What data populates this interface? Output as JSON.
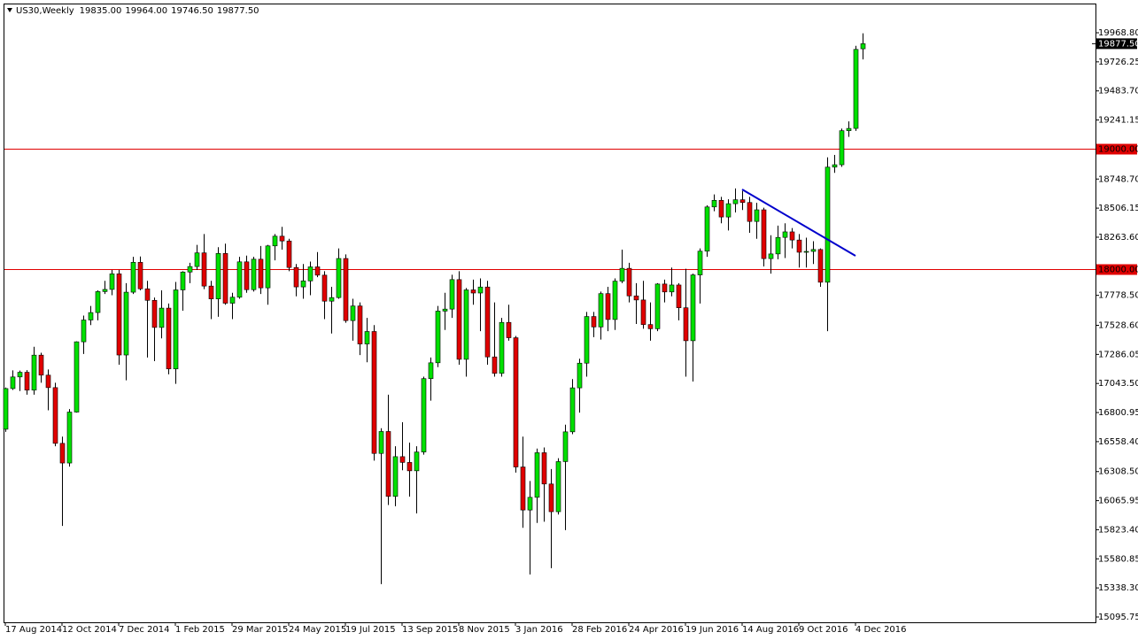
{
  "chart_data": {
    "type": "candlestick",
    "title": "US30,Weekly",
    "last_bar_labels": [
      "19835.00",
      "19964.00",
      "19746.50",
      "19877.50"
    ],
    "categories": [
      "17 Aug 2014",
      null,
      null,
      null,
      null,
      null,
      null,
      null,
      "12 Oct 2014",
      null,
      null,
      null,
      null,
      null,
      null,
      null,
      "7 Dec 2014",
      null,
      null,
      null,
      null,
      null,
      null,
      null,
      "1 Feb 2015",
      null,
      null,
      null,
      null,
      null,
      null,
      null,
      "29 Mar 2015",
      null,
      null,
      null,
      null,
      null,
      null,
      null,
      "24 May 2015",
      null,
      null,
      null,
      null,
      null,
      null,
      null,
      "19 Jul 2015",
      null,
      null,
      null,
      null,
      null,
      null,
      null,
      "13 Sep 2015",
      null,
      null,
      null,
      null,
      null,
      null,
      null,
      "8 Nov 2015",
      null,
      null,
      null,
      null,
      null,
      null,
      null,
      "3 Jan 2016",
      null,
      null,
      null,
      null,
      null,
      null,
      null,
      "28 Feb 2016",
      null,
      null,
      null,
      null,
      null,
      null,
      null,
      "24 Apr 2016",
      null,
      null,
      null,
      null,
      null,
      null,
      null,
      "19 Jun 2016",
      null,
      null,
      null,
      null,
      null,
      null,
      null,
      "14 Aug 2016",
      null,
      null,
      null,
      null,
      null,
      null,
      null,
      "9 Oct 2016",
      null,
      null,
      null,
      null,
      null,
      null,
      null,
      "4 Dec 2016",
      null
    ],
    "open": [
      16662,
      17001,
      17098,
      17137,
      16988,
      17280,
      17113,
      17009,
      16544,
      16380,
      16805,
      17391,
      17573,
      17635,
      17810,
      17828,
      17958,
      17281,
      17805,
      18054,
      17833,
      17737,
      17511,
      17672,
      17165,
      17824,
      17973,
      18019,
      18133,
      17856,
      17749,
      18128,
      17713,
      17763,
      18058,
      17826,
      18080,
      17841,
      18191,
      18272,
      18232,
      18011,
      17849,
      17899,
      18016,
      17947,
      17730,
      17760,
      18086,
      17568,
      17690,
      17373,
      17477,
      16460,
      16643,
      16102,
      16433,
      16385,
      16315,
      16472,
      17084,
      17216,
      17647,
      17664,
      17910,
      17245,
      17824,
      17798,
      17848,
      17265,
      17128,
      17553,
      17425,
      16347,
      15988,
      16094,
      16466,
      16205,
      15974,
      16392,
      16640,
      17007,
      17213,
      17602,
      17515,
      17793,
      17577,
      17897,
      18004,
      17774,
      17740,
      17535,
      17500,
      17873,
      17807,
      17865,
      17675,
      17400,
      17949,
      18147,
      18516,
      18571,
      18432,
      18543,
      18576,
      18553,
      18395,
      18492,
      18085,
      18124,
      18262,
      18308,
      18240,
      18138,
      18145,
      18161,
      17888,
      18848,
      18868,
      19152,
      19171,
      19835
    ],
    "high": [
      17010,
      17153,
      17151,
      17155,
      17350,
      17300,
      17160,
      17050,
      16600,
      16830,
      17395,
      17610,
      17690,
      17820,
      17900,
      17990,
      17990,
      17880,
      18100,
      18103,
      17900,
      17760,
      17820,
      17710,
      17890,
      17980,
      18050,
      18200,
      18290,
      17900,
      18180,
      18210,
      17800,
      18100,
      18110,
      18100,
      18190,
      18200,
      18290,
      18350,
      18250,
      18040,
      18040,
      18060,
      18140,
      17980,
      17850,
      18170,
      18120,
      17750,
      17720,
      17590,
      17530,
      16670,
      16950,
      16520,
      16720,
      16550,
      16520,
      17100,
      17260,
      17690,
      17800,
      17950,
      17980,
      17840,
      17910,
      17920,
      17900,
      17720,
      17590,
      17700,
      17440,
      16600,
      16230,
      16500,
      16510,
      16330,
      16420,
      16700,
      17080,
      17250,
      17640,
      17640,
      17810,
      17850,
      17920,
      18160,
      18050,
      17880,
      17900,
      17720,
      17880,
      17910,
      18010,
      17880,
      18000,
      17960,
      18170,
      18530,
      18620,
      18600,
      18580,
      18670,
      18650,
      18600,
      18550,
      18510,
      18280,
      18360,
      18380,
      18340,
      18290,
      18260,
      18230,
      18170,
      18930,
      18950,
      19170,
      19230,
      19860,
      19964
    ],
    "low": [
      16640,
      16990,
      16980,
      16950,
      16950,
      17050,
      16820,
      16520,
      15855,
      16350,
      16800,
      17290,
      17530,
      17570,
      17790,
      17780,
      17200,
      17070,
      17790,
      17820,
      17260,
      17230,
      17420,
      17120,
      17040,
      17650,
      17880,
      17990,
      17830,
      17580,
      17600,
      17700,
      17580,
      17750,
      17800,
      17810,
      17790,
      17700,
      18070,
      18160,
      17980,
      17770,
      17750,
      17780,
      17930,
      17580,
      17460,
      17750,
      17550,
      17400,
      17280,
      17220,
      16400,
      15370,
      16030,
      16020,
      16320,
      16100,
      15960,
      16450,
      16900,
      17180,
      17490,
      17590,
      17200,
      17100,
      17700,
      17480,
      17200,
      17100,
      17100,
      17400,
      16300,
      15840,
      15450,
      15880,
      15890,
      15503,
      15950,
      15820,
      16620,
      16800,
      17100,
      17430,
      17410,
      17480,
      17490,
      17880,
      17720,
      17540,
      17500,
      17400,
      17480,
      17720,
      17770,
      17570,
      17100,
      17060,
      17710,
      18100,
      18480,
      18380,
      18320,
      18470,
      18490,
      18300,
      18250,
      18020,
      17960,
      18080,
      18090,
      18170,
      18010,
      18010,
      18040,
      17850,
      17480,
      18800,
      18850,
      19100,
      19150,
      19746.5
    ],
    "close": [
      17001,
      17098,
      17137,
      16988,
      17280,
      17113,
      17009,
      16544,
      16380,
      16805,
      17391,
      17573,
      17635,
      17810,
      17828,
      17958,
      17281,
      17805,
      18054,
      17833,
      17737,
      17511,
      17672,
      17165,
      17824,
      17973,
      18019,
      18133,
      17856,
      17749,
      18128,
      17713,
      17763,
      18058,
      17826,
      18080,
      17841,
      18191,
      18272,
      18232,
      18011,
      17849,
      17899,
      18016,
      17947,
      17730,
      17760,
      18086,
      17568,
      17690,
      17373,
      17477,
      16460,
      16643,
      16102,
      16433,
      16385,
      16315,
      16472,
      17084,
      17216,
      17647,
      17664,
      17910,
      17245,
      17824,
      17798,
      17848,
      17265,
      17128,
      17553,
      17425,
      16347,
      15988,
      16094,
      16466,
      16205,
      15974,
      16392,
      16640,
      17007,
      17213,
      17602,
      17515,
      17793,
      17577,
      17897,
      18004,
      17774,
      17740,
      17535,
      17500,
      17873,
      17807,
      17865,
      17675,
      17400,
      17949,
      18147,
      18516,
      18571,
      18432,
      18543,
      18576,
      18553,
      18395,
      18492,
      18085,
      18124,
      18262,
      18308,
      18240,
      18138,
      18145,
      18161,
      17888,
      18848,
      18868,
      19152,
      19171,
      19830,
      19877.5
    ],
    "up_color": "#00e000",
    "down_color": "#e00000",
    "ylim": [
      15051.45,
      20205.1
    ],
    "yticks": [
      {
        "value": 19968.8,
        "label": "19968.80"
      },
      {
        "value": 19726.25,
        "label": "19726.25"
      },
      {
        "value": 19483.7,
        "label": "19483.70"
      },
      {
        "value": 19241.15,
        "label": "19241.15"
      },
      {
        "value": 18748.7,
        "label": "18748.70"
      },
      {
        "value": 18506.15,
        "label": "18506.15"
      },
      {
        "value": 18263.6,
        "label": "18263.60"
      },
      {
        "value": 17778.5,
        "label": "17778.50"
      },
      {
        "value": 17528.6,
        "label": "17528.60"
      },
      {
        "value": 17286.05,
        "label": "17286.05"
      },
      {
        "value": 17043.5,
        "label": "17043.50"
      },
      {
        "value": 16800.95,
        "label": "16800.95"
      },
      {
        "value": 16558.4,
        "label": "16558.40"
      },
      {
        "value": 16308.5,
        "label": "16308.50"
      },
      {
        "value": 16065.95,
        "label": "16065.95"
      },
      {
        "value": 15823.4,
        "label": "15823.40"
      },
      {
        "value": 15580.85,
        "label": "15580.85"
      },
      {
        "value": 15338.3,
        "label": "15338.30"
      },
      {
        "value": 15095.75,
        "label": "15095.75"
      }
    ],
    "hlines": [
      {
        "value": 19000,
        "label": "19000.00"
      },
      {
        "value": 18000,
        "label": "18000.00"
      }
    ],
    "hline_color": "#e00000",
    "current_price": {
      "value": 19877.5,
      "label": "19877.50"
    },
    "trendline": {
      "x": [
        104,
        120
      ],
      "y": [
        18662,
        18108
      ],
      "color": "#0000cc"
    }
  }
}
